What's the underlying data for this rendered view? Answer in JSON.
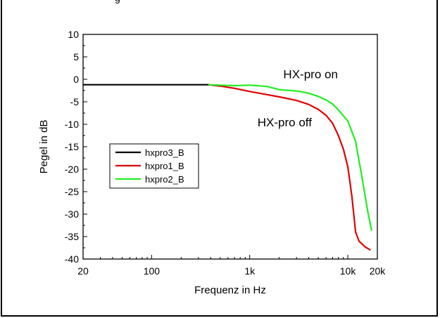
{
  "partial_top_text": "g",
  "chart_data": {
    "type": "line",
    "xlabel": "Frequenz in Hz",
    "ylabel": "Pegel in dB",
    "xscale": "log",
    "xlim": [
      20,
      20000
    ],
    "ylim": [
      -40,
      10
    ],
    "x_ticks": [
      {
        "value": 20,
        "label": "20"
      },
      {
        "value": 100,
        "label": "100"
      },
      {
        "value": 1000,
        "label": "1k"
      },
      {
        "value": 10000,
        "label": "10k"
      },
      {
        "value": 20000,
        "label": "20k"
      }
    ],
    "y_ticks": [
      {
        "value": 10,
        "label": "10"
      },
      {
        "value": 5,
        "label": "5"
      },
      {
        "value": 0,
        "label": "0"
      },
      {
        "value": -5,
        "label": "-5"
      },
      {
        "value": -10,
        "label": "-10"
      },
      {
        "value": -15,
        "label": "-15"
      },
      {
        "value": -20,
        "label": "-20"
      },
      {
        "value": -25,
        "label": "-25"
      },
      {
        "value": -30,
        "label": "-30"
      },
      {
        "value": -35,
        "label": "-35"
      },
      {
        "value": -40,
        "label": "-40"
      }
    ],
    "legend_position": "center-left",
    "series": [
      {
        "name": "hxpro3_B",
        "color": "#000000",
        "x": [
          20,
          50,
          100,
          200,
          300,
          380
        ],
        "y": [
          -1.2,
          -1.2,
          -1.2,
          -1.2,
          -1.2,
          -1.2
        ]
      },
      {
        "name": "hxpro1_B",
        "color": "#e00000",
        "x": [
          380,
          500,
          700,
          1000,
          1500,
          2000,
          3000,
          4000,
          5000,
          6000,
          7000,
          8000,
          9000,
          10000,
          11000,
          12000,
          13000,
          15000,
          17000
        ],
        "y": [
          -1.2,
          -1.5,
          -2.0,
          -2.7,
          -3.4,
          -3.9,
          -4.7,
          -5.6,
          -6.7,
          -8.0,
          -9.8,
          -12.5,
          -15.5,
          -19.5,
          -26.0,
          -34.0,
          -36.0,
          -37.3,
          -38.0
        ]
      },
      {
        "name": "hxpro2_B",
        "color": "#22ee22",
        "x": [
          380,
          500,
          700,
          1000,
          1500,
          2000,
          3000,
          4000,
          5000,
          6000,
          7000,
          8000,
          10000,
          12000,
          14000,
          16000,
          17500
        ],
        "y": [
          -1.2,
          -1.3,
          -1.4,
          -1.3,
          -1.6,
          -2.3,
          -2.6,
          -3.1,
          -3.8,
          -4.6,
          -5.5,
          -6.8,
          -9.3,
          -13.8,
          -22.0,
          -29.5,
          -33.7
        ]
      }
    ],
    "annotations": [
      {
        "text": "HX-pro on",
        "x": 2200,
        "y": 0.2
      },
      {
        "text": "HX-pro off",
        "x": 1200,
        "y": -10.5
      }
    ]
  }
}
